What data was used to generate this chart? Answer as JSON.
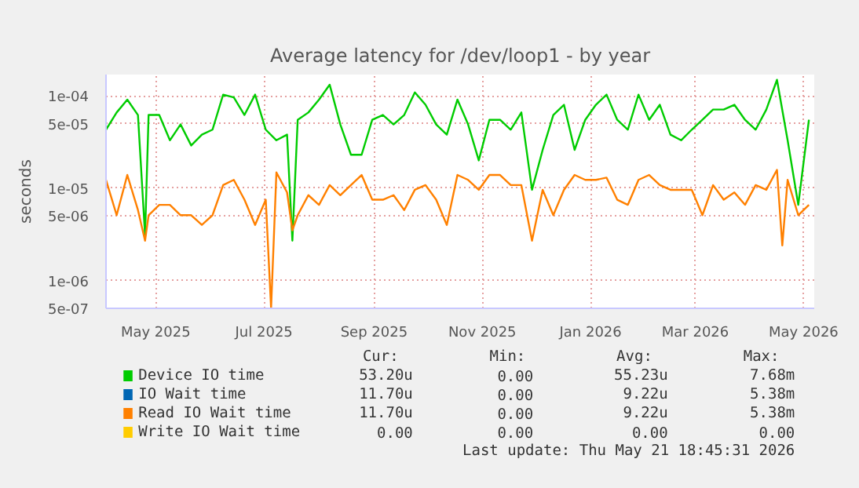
{
  "chart_data": {
    "type": "line",
    "title": "Average latency for /dev/loop1 - by year",
    "ylabel": "seconds",
    "log": "y",
    "grid": true,
    "legend": "bottom",
    "xlim": [
      "2025-04-18",
      "2026-05-22"
    ],
    "ylim": [
      5e-07,
      0.00017
    ],
    "xticks": [
      {
        "value": "2025-05-16",
        "label": "May 2025"
      },
      {
        "value": "2025-07-16",
        "label": "Jul 2025"
      },
      {
        "value": "2025-09-16",
        "label": "Sep 2025"
      },
      {
        "value": "2025-11-16",
        "label": "Nov 2025"
      },
      {
        "value": "2026-01-16",
        "label": "Jan 2026"
      },
      {
        "value": "2026-03-16",
        "label": "Mar 2026"
      },
      {
        "value": "2026-05-16",
        "label": "May 2026"
      }
    ],
    "yticks": [
      {
        "value": 0.0001,
        "label": "1e-04"
      },
      {
        "value": 5e-05,
        "label": "5e-05"
      },
      {
        "value": 1e-05,
        "label": "1e-05"
      },
      {
        "value": 5e-06,
        "label": "5e-06"
      },
      {
        "value": 1e-06,
        "label": "1e-06"
      },
      {
        "value": 5e-07,
        "label": "5e-07"
      }
    ],
    "series": [
      {
        "name": "Device IO time",
        "color": "#00cc00",
        "x": [
          "2025-04-18",
          "2025-04-24",
          "2025-04-30",
          "2025-05-06",
          "2025-05-10",
          "2025-05-12",
          "2025-05-18",
          "2025-05-24",
          "2025-05-30",
          "2025-06-05",
          "2025-06-11",
          "2025-06-17",
          "2025-06-23",
          "2025-06-29",
          "2025-07-05",
          "2025-07-11",
          "2025-07-17",
          "2025-07-23",
          "2025-07-29",
          "2025-08-01",
          "2025-08-04",
          "2025-08-10",
          "2025-08-16",
          "2025-08-22",
          "2025-08-28",
          "2025-09-03",
          "2025-09-09",
          "2025-09-15",
          "2025-09-21",
          "2025-09-27",
          "2025-10-03",
          "2025-10-09",
          "2025-10-15",
          "2025-10-21",
          "2025-10-27",
          "2025-11-02",
          "2025-11-08",
          "2025-11-14",
          "2025-11-20",
          "2025-11-26",
          "2025-12-02",
          "2025-12-08",
          "2025-12-14",
          "2025-12-20",
          "2025-12-26",
          "2026-01-01",
          "2026-01-07",
          "2026-01-13",
          "2026-01-19",
          "2026-01-25",
          "2026-01-31",
          "2026-02-06",
          "2026-02-12",
          "2026-02-18",
          "2026-02-24",
          "2026-03-02",
          "2026-03-08",
          "2026-03-14",
          "2026-03-20",
          "2026-03-26",
          "2026-04-01",
          "2026-04-07",
          "2026-04-13",
          "2026-04-19",
          "2026-04-25",
          "2026-05-01",
          "2026-05-07",
          "2026-05-13",
          "2026-05-19"
        ],
        "values": [
          4.3e-05,
          6.6e-05,
          9.1e-05,
          6.2e-05,
          3.1e-06,
          6.2e-05,
          6.2e-05,
          3.3e-05,
          4.9e-05,
          2.9e-05,
          3.8e-05,
          4.3e-05,
          0.000103,
          9.6e-05,
          6.2e-05,
          0.000103,
          4.3e-05,
          3.3e-05,
          3.8e-05,
          2.7e-06,
          5.5e-05,
          6.6e-05,
          9.1e-05,
          0.000132,
          4.9e-05,
          2.3e-05,
          2.3e-05,
          5.5e-05,
          6.2e-05,
          4.9e-05,
          6.2e-05,
          0.000109,
          8e-05,
          4.9e-05,
          3.8e-05,
          9.1e-05,
          4.9e-05,
          2e-05,
          5.5e-05,
          5.5e-05,
          4.3e-05,
          6.6e-05,
          9.6e-06,
          2.6e-05,
          6.2e-05,
          8e-05,
          2.6e-05,
          5.5e-05,
          8e-05,
          0.000103,
          5.5e-05,
          4.3e-05,
          0.000103,
          5.5e-05,
          8e-05,
          3.8e-05,
          3.3e-05,
          4.3e-05,
          5.5e-05,
          7.1e-05,
          7.1e-05,
          8e-05,
          5.5e-05,
          4.3e-05,
          7.1e-05,
          0.000149,
          3.3e-05,
          6.6e-06,
          5.5e-05
        ]
      },
      {
        "name": "IO Wait time",
        "color": "#0066b3"
      },
      {
        "name": "Read IO Wait time",
        "color": "#ff8000",
        "x": [
          "2025-04-18",
          "2025-04-24",
          "2025-04-30",
          "2025-05-06",
          "2025-05-10",
          "2025-05-12",
          "2025-05-18",
          "2025-05-24",
          "2025-05-30",
          "2025-06-05",
          "2025-06-11",
          "2025-06-17",
          "2025-06-23",
          "2025-06-29",
          "2025-07-05",
          "2025-07-11",
          "2025-07-17",
          "2025-07-20",
          "2025-07-23",
          "2025-07-29",
          "2025-08-01",
          "2025-08-04",
          "2025-08-10",
          "2025-08-16",
          "2025-08-22",
          "2025-08-28",
          "2025-09-03",
          "2025-09-09",
          "2025-09-15",
          "2025-09-21",
          "2025-09-27",
          "2025-10-03",
          "2025-10-09",
          "2025-10-15",
          "2025-10-21",
          "2025-10-27",
          "2025-11-02",
          "2025-11-08",
          "2025-11-14",
          "2025-11-20",
          "2025-11-26",
          "2025-12-02",
          "2025-12-08",
          "2025-12-14",
          "2025-12-20",
          "2025-12-26",
          "2026-01-01",
          "2026-01-07",
          "2026-01-13",
          "2026-01-19",
          "2026-01-25",
          "2026-01-31",
          "2026-02-06",
          "2026-02-12",
          "2026-02-18",
          "2026-02-24",
          "2026-03-02",
          "2026-03-08",
          "2026-03-14",
          "2026-03-20",
          "2026-03-26",
          "2026-04-01",
          "2026-04-07",
          "2026-04-13",
          "2026-04-19",
          "2026-04-25",
          "2026-05-01",
          "2026-05-04",
          "2026-05-07",
          "2026-05-13",
          "2026-05-19"
        ],
        "values": [
          1.23e-05,
          5.1e-06,
          1.39e-05,
          5.8e-06,
          2.7e-06,
          5.1e-06,
          6.6e-06,
          6.6e-06,
          5.1e-06,
          5.1e-06,
          4e-06,
          5.1e-06,
          1.08e-05,
          1.23e-05,
          7.5e-06,
          4e-06,
          7.5e-06,
          5e-07,
          1.48e-05,
          9e-06,
          3.5e-06,
          5.1e-06,
          8.4e-06,
          6.6e-06,
          1.08e-05,
          8.4e-06,
          1.08e-05,
          1.39e-05,
          7.5e-06,
          7.5e-06,
          8.4e-06,
          5.8e-06,
          9.6e-06,
          1.08e-05,
          7.5e-06,
          4e-06,
          1.39e-05,
          1.23e-05,
          9.6e-06,
          1.39e-05,
          1.39e-05,
          1.08e-05,
          1.08e-05,
          2.7e-06,
          9.6e-06,
          5.1e-06,
          9.6e-06,
          1.39e-05,
          1.23e-05,
          1.23e-05,
          1.3e-05,
          7.5e-06,
          6.6e-06,
          1.23e-05,
          1.39e-05,
          1.08e-05,
          9.6e-06,
          9.6e-06,
          9.6e-06,
          5.1e-06,
          1.08e-05,
          7.5e-06,
          9e-06,
          6.6e-06,
          1.08e-05,
          9.6e-06,
          1.58e-05,
          2.4e-06,
          1.23e-05,
          5.1e-06,
          6.6e-06
        ]
      },
      {
        "name": "Write IO Wait time",
        "color": "#ffcc00"
      }
    ],
    "annotations": [
      "Cur:",
      "Min:",
      "Avg:",
      "Max:",
      "53.20u",
      "0.00",
      "55.23u",
      "7.68m",
      "11.70u",
      "0.00",
      "9.22u",
      "5.38m",
      "11.70u",
      "0.00",
      "9.22u",
      "5.38m",
      "0.00",
      "0.00",
      "0.00",
      "0.00",
      "Last update: Thu May 21 18:45:31 2026"
    ]
  }
}
